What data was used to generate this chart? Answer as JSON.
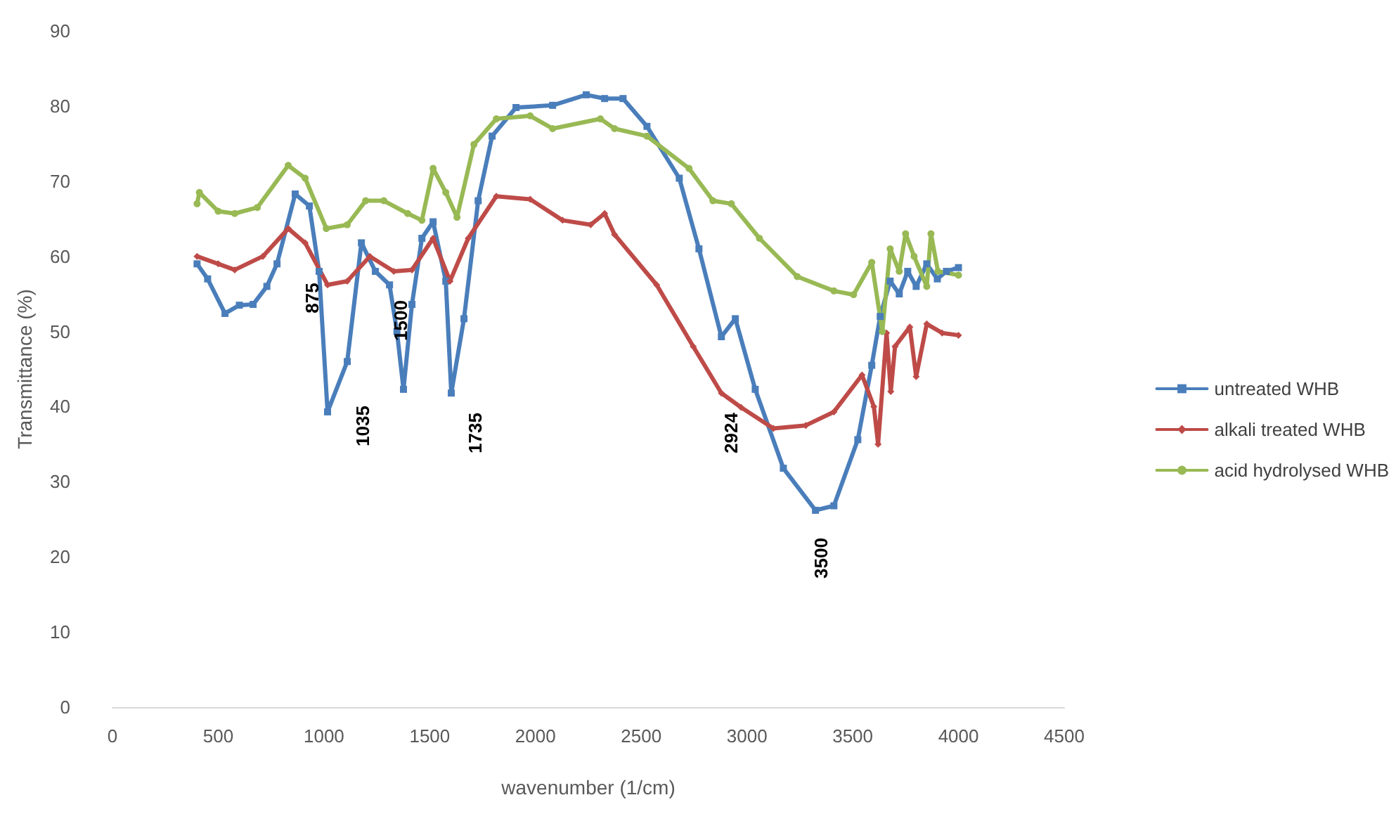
{
  "chart_data": {
    "type": "line",
    "xlabel": "wavenumber (1/cm)",
    "ylabel": "Transmittance (%)",
    "xlim": [
      0,
      4500
    ],
    "xticks": [
      0,
      500,
      1000,
      1500,
      2000,
      2500,
      3000,
      3500,
      4000,
      4500
    ],
    "ylim": [
      0,
      90
    ],
    "yticks": [
      0,
      10,
      20,
      30,
      40,
      50,
      60,
      70,
      80,
      90
    ],
    "grid": false,
    "legend": "right",
    "line_style": "solid",
    "annotations": [
      "875",
      "1035",
      "1500",
      "1735",
      "2924",
      "3500"
    ],
    "series": [
      {
        "name": "untreated WHB",
        "color": "#4a7ebb",
        "marker": "square",
        "x": [
          400,
          450,
          532,
          600,
          665,
          730,
          778,
          864,
          931,
          977,
          1017,
          1110,
          1177,
          1243,
          1310,
          1345,
          1376,
          1416,
          1463,
          1516,
          1576,
          1602,
          1662,
          1729,
          1795,
          1908,
          2081,
          2240,
          2327,
          2414,
          2527,
          2680,
          2773,
          2879,
          2945,
          3039,
          3172,
          3324,
          3411,
          3524,
          3590,
          3630,
          3677,
          3720,
          3760,
          3800,
          3850,
          3900,
          3943,
          4000
        ],
        "values": [
          59,
          57,
          52.4,
          53.5,
          53.6,
          56,
          59,
          68.3,
          66.7,
          58,
          39.3,
          46,
          61.8,
          58,
          56.2,
          50,
          42.3,
          53.6,
          62.4,
          64.6,
          56.7,
          41.8,
          51.7,
          67.4,
          76,
          79.8,
          80.1,
          81.5,
          81,
          81,
          77.3,
          70.4,
          61,
          49.3,
          51.7,
          42.3,
          31.8,
          26.2,
          26.8,
          35.6,
          45.5,
          52,
          56.7,
          55,
          58,
          56,
          59,
          57,
          58,
          58.5
        ]
      },
      {
        "name": "alkali treated WHB",
        "color": "#be4b48",
        "marker": "diamond",
        "x": [
          400,
          500,
          578,
          711,
          831,
          911,
          1017,
          1110,
          1217,
          1330,
          1416,
          1516,
          1596,
          1682,
          1815,
          1975,
          2128,
          2261,
          2327,
          2374,
          2573,
          2746,
          2879,
          2972,
          3125,
          3278,
          3411,
          3544,
          3600,
          3620,
          3660,
          3680,
          3700,
          3770,
          3800,
          3850,
          3923,
          4000
        ],
        "values": [
          60,
          59,
          58.2,
          60,
          63.7,
          61.8,
          56.2,
          56.7,
          60,
          58,
          58.2,
          62.4,
          56.7,
          62.4,
          68,
          67.6,
          64.8,
          64.2,
          65.7,
          62.9,
          56.2,
          48,
          41.8,
          39.9,
          37.1,
          37.5,
          39.3,
          44.2,
          40,
          35,
          49.8,
          42,
          48,
          50.6,
          44,
          51,
          49.8,
          49.5
        ]
      },
      {
        "name": "acid hydrolysed WHB",
        "color": "#98b954",
        "marker": "circle",
        "x": [
          400,
          411,
          500,
          578,
          685,
          831,
          911,
          1011,
          1110,
          1197,
          1283,
          1396,
          1463,
          1516,
          1576,
          1629,
          1709,
          1815,
          1975,
          2081,
          2307,
          2374,
          2527,
          2726,
          2839,
          2926,
          3059,
          3238,
          3411,
          3504,
          3590,
          3640,
          3677,
          3720,
          3750,
          3790,
          3850,
          3870,
          3903,
          4000
        ],
        "values": [
          67,
          68.5,
          66,
          65.7,
          66.5,
          72.1,
          70.4,
          63.7,
          64.2,
          67.4,
          67.4,
          65.7,
          64.8,
          71.7,
          68.5,
          65.2,
          74.9,
          78.3,
          78.7,
          77,
          78.3,
          77,
          76,
          71.7,
          67.4,
          67,
          62.4,
          57.3,
          55.4,
          54.9,
          59.2,
          50,
          61,
          58,
          63,
          60,
          56,
          63,
          58,
          57.5
        ]
      }
    ]
  }
}
